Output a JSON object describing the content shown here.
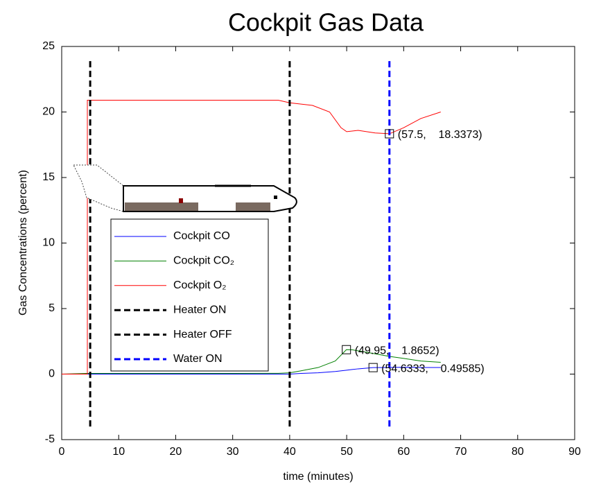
{
  "chart_data": {
    "type": "line",
    "title": "Cockpit Gas Data",
    "x_label": "time (minutes)",
    "y_label": "Gas Concentrations (percent)",
    "xlim": [
      0,
      90
    ],
    "xticks": [
      0,
      10,
      20,
      30,
      40,
      50,
      60,
      70,
      80,
      90
    ],
    "ylim": [
      -5,
      25
    ],
    "yticks": [
      -5,
      0,
      5,
      10,
      15,
      20,
      25
    ],
    "grid": false,
    "legend": "left",
    "series": [
      {
        "name": "Cockpit CO",
        "color": "#0000ff",
        "dashed": false,
        "x": [
          0,
          4.5,
          10,
          20,
          30,
          40,
          42,
          45,
          48,
          50,
          52,
          54.6333,
          57,
          60,
          63,
          66.5
        ],
        "values": [
          0,
          0,
          0,
          0,
          0,
          0,
          0.05,
          0.1,
          0.2,
          0.3,
          0.4,
          0.49585,
          0.5,
          0.52,
          0.5,
          0.5
        ]
      },
      {
        "name": "Cockpit CO₂",
        "color": "#008000",
        "dashed": false,
        "x": [
          0,
          4.5,
          10,
          20,
          30,
          38,
          40,
          42,
          45,
          48,
          49.95,
          51,
          53,
          55,
          57.5,
          60,
          63,
          66.5
        ],
        "values": [
          0,
          0.05,
          0.05,
          0.05,
          0.05,
          0.06,
          0.1,
          0.25,
          0.5,
          1.0,
          1.8652,
          1.85,
          1.7,
          1.55,
          1.35,
          1.2,
          1.0,
          0.9
        ]
      },
      {
        "name": "Cockpit O₂",
        "color": "#ff0000",
        "dashed": false,
        "x": [
          0,
          4.5,
          4.5,
          10,
          20,
          30,
          38,
          40,
          44,
          47,
          49,
          50,
          52,
          55,
          57.5,
          60,
          63,
          66.5
        ],
        "values": [
          0,
          0,
          20.9,
          20.9,
          20.9,
          20.9,
          20.9,
          20.7,
          20.5,
          20.0,
          18.8,
          18.5,
          18.6,
          18.4,
          18.3373,
          18.8,
          19.5,
          20.0
        ]
      },
      {
        "name": "Heater ON",
        "color": "#000000",
        "dashed": true,
        "x": [
          5,
          5
        ],
        "values": [
          -4,
          24
        ]
      },
      {
        "name": "Heater OFF",
        "color": "#000000",
        "dashed": true,
        "x": [
          40,
          40
        ],
        "values": [
          -4,
          24
        ]
      },
      {
        "name": "Water ON",
        "color": "#0000ff",
        "dashed": true,
        "x": [
          57.5,
          57.5
        ],
        "values": [
          -4,
          24
        ]
      }
    ],
    "annotations": [
      {
        "x": 57.5,
        "y": 18.3373,
        "label": "(57.5,    18.3373)"
      },
      {
        "x": 49.95,
        "y": 1.8652,
        "label": "(49.95,    1.8652)"
      },
      {
        "x": 54.6333,
        "y": 0.49585,
        "label": "(54.6333,    0.49585)"
      }
    ]
  }
}
